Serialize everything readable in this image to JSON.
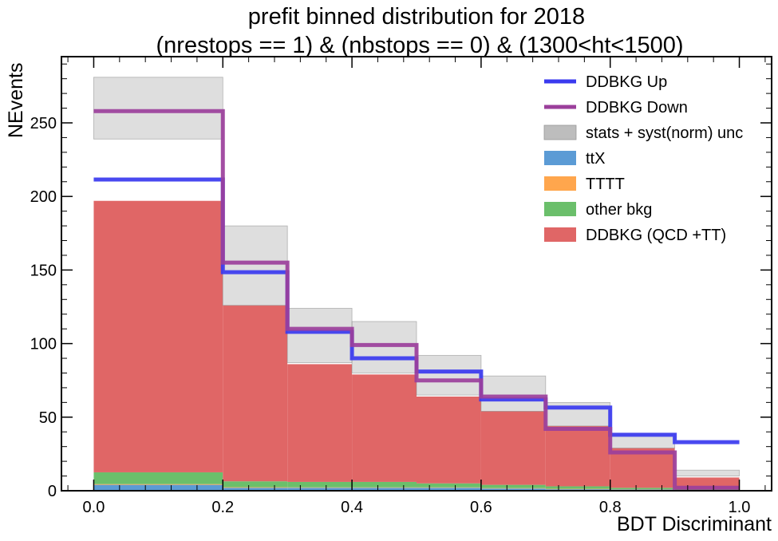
{
  "chart_data": {
    "type": "bar",
    "title_line1": "prefit binned distribution for 2018",
    "title_line2": "(nrestops == 1) & (nbstops == 0) & (1300<ht<1500)",
    "xlabel": "BDT Discriminant",
    "ylabel": "NEvents",
    "xlim": [
      -0.05,
      1.05
    ],
    "ylim": [
      0,
      295
    ],
    "x_ticks": [
      "0.0",
      "0.2",
      "0.4",
      "0.6",
      "0.8",
      "1.0"
    ],
    "y_ticks": [
      "0",
      "50",
      "100",
      "150",
      "200",
      "250"
    ],
    "x_tick_values": [
      0.0,
      0.2,
      0.4,
      0.6,
      0.8,
      1.0
    ],
    "y_tick_values": [
      0,
      50,
      100,
      150,
      200,
      250
    ],
    "bin_edges": [
      0.0,
      0.2,
      0.3,
      0.4,
      0.5,
      0.6,
      0.7,
      0.8,
      0.9,
      1.0
    ],
    "stacked_series": [
      {
        "name": "ttX",
        "color": "#5b9bd5",
        "values": [
          4,
          2,
          2,
          2,
          2,
          1.5,
          1,
          0.8,
          0.3
        ]
      },
      {
        "name": "TTTT",
        "color": "#ffa64d",
        "values": [
          0.5,
          0.4,
          0.3,
          0.3,
          0.3,
          0.3,
          0.3,
          0.2,
          0.1
        ]
      },
      {
        "name": "other bkg",
        "color": "#6bbf6b",
        "values": [
          8,
          4,
          3.7,
          3.7,
          2.7,
          2.2,
          1.7,
          1.0,
          0.4
        ]
      },
      {
        "name": "DDBKG (QCD +TT)",
        "color": "#e06666",
        "values": [
          184.5,
          119.6,
          80,
          73,
          59,
          50,
          41,
          27,
          8.2
        ]
      }
    ],
    "uncertainty_band": {
      "name": "stats + syst(norm) unc",
      "color": "#bdbdbd",
      "low": [
        239,
        126,
        87,
        80,
        65,
        54,
        44,
        29,
        10
      ],
      "high": [
        281,
        180,
        124,
        115,
        92,
        78,
        60,
        39,
        14
      ]
    },
    "line_series": [
      {
        "name": "DDBKG Up",
        "color": "#3a3aef",
        "values": [
          211.5,
          148.5,
          108,
          90,
          81,
          62,
          56.5,
          38,
          33
        ]
      },
      {
        "name": "DDBKG Down",
        "color": "#9b3f9b",
        "values": [
          258,
          155,
          110,
          99,
          75,
          64,
          42,
          26,
          2
        ]
      }
    ],
    "legend": [
      "DDBKG Up",
      "DDBKG Down",
      "stats + syst(norm) unc",
      "ttX",
      "TTTT",
      "other bkg",
      "DDBKG (QCD +TT)"
    ],
    "legend_position": "top-right",
    "grid": false
  }
}
